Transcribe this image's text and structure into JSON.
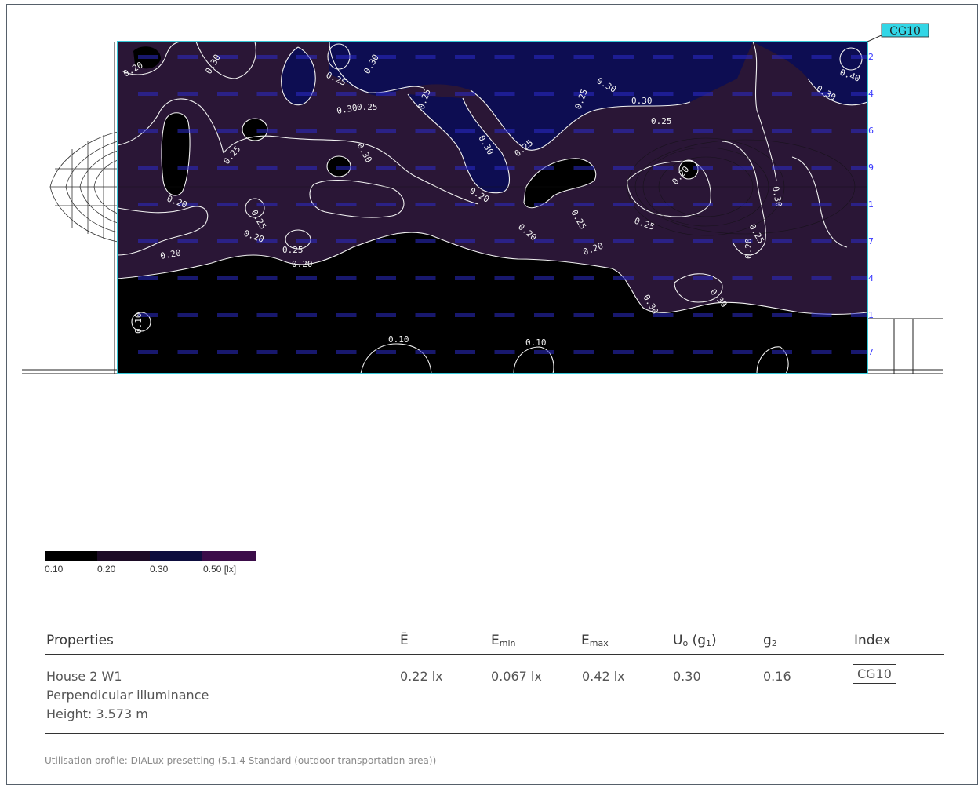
{
  "diagram": {
    "index_tag": "CG10",
    "colors": {
      "background_dark": "#2a1636",
      "blue_region": "#0d0d52",
      "black_region": "#000000",
      "contour": "#f2f2f2",
      "grid_value": "#3a3aff",
      "frame": "#37c8d8",
      "tag_fill": "#33d6e6"
    },
    "contour_labels": [
      "0.20",
      "0.30",
      "0.25",
      "0.30",
      "0.25",
      "0.30",
      "0.25",
      "0.30",
      "0.30",
      "0.25",
      "0.30",
      "0.40",
      "0.30",
      "0.25",
      "0.20",
      "0.25",
      "0.30",
      "0.20",
      "0.25",
      "0.20",
      "0.25",
      "0.20",
      "0.20",
      "0.25",
      "0.25",
      "0.20",
      "0.20",
      "0.25",
      "0.30",
      "0.30",
      "0.25",
      "0.30",
      "0.20",
      "0.20",
      "0.10",
      "0.10",
      "0.10"
    ],
    "edge_numbers": [
      "2",
      "4",
      "6",
      "9",
      "1",
      "7",
      "4",
      "1",
      "7"
    ]
  },
  "legend": {
    "colors": [
      "#000000",
      "#1c0b25",
      "#0d0d3e",
      "#3b0c49"
    ],
    "labels": [
      "0.10",
      "0.20",
      "0.30",
      "0.50 [lx]"
    ]
  },
  "table": {
    "headers": {
      "properties": "Properties",
      "e_avg": "Ē",
      "e_min_base": "E",
      "e_min_sub": "min",
      "e_max_base": "E",
      "e_max_sub": "max",
      "uo_base": "U",
      "uo_sub": "o",
      "uo_mid": " (g",
      "uo_sub2": "1",
      "uo_end": ")",
      "g2_base": "g",
      "g2_sub": "2",
      "index": "Index"
    },
    "row": {
      "name": "House 2 W1",
      "type": "Perpendicular illuminance",
      "height": "Height: 3.573 m",
      "e_avg": "0.22 lx",
      "e_min": "0.067 lx",
      "e_max": "0.42 lx",
      "uo": "0.30",
      "g2": "0.16",
      "index": "CG10"
    }
  },
  "footer": "Utilisation profile: DIALux presetting (5.1.4 Standard (outdoor transportation area))"
}
